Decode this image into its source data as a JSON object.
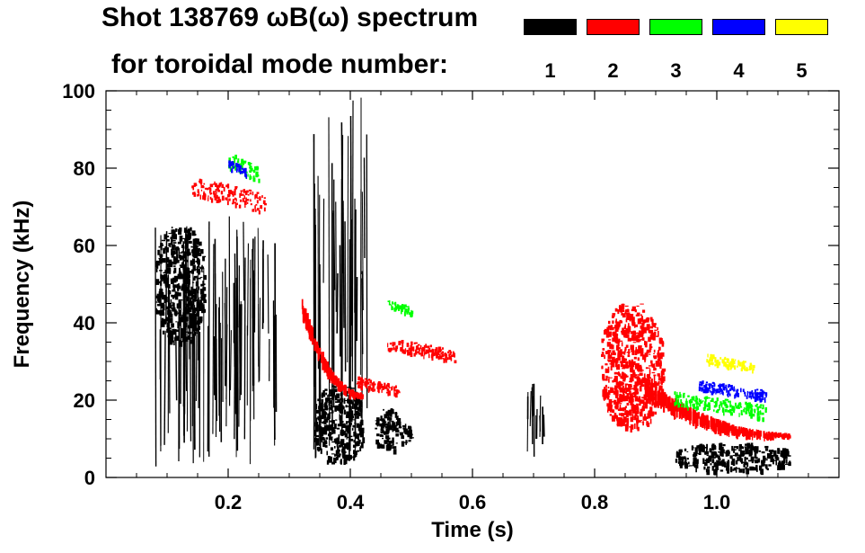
{
  "chart_data": {
    "type": "heatmap",
    "title": "Shot 138769 ωB(ω) spectrum",
    "subtitle": "for toroidal mode number:",
    "xlabel": "Time (s)",
    "ylabel": "Frequency (kHz)",
    "xlim": [
      0.0,
      1.2
    ],
    "ylim": [
      0,
      100
    ],
    "x_ticks": [
      0.2,
      0.4,
      0.6,
      0.8,
      1.0
    ],
    "x_tick_labels": [
      "0.2",
      "0.4",
      "0.6",
      "0.8",
      "1.0"
    ],
    "y_ticks": [
      0,
      20,
      40,
      60,
      80,
      100
    ],
    "y_tick_labels": [
      "0",
      "20",
      "40",
      "60",
      "80",
      "100"
    ],
    "legend": [
      {
        "label": "1",
        "color": "#000000"
      },
      {
        "label": "2",
        "color": "#ff0000"
      },
      {
        "label": "3",
        "color": "#00ff00"
      },
      {
        "label": "4",
        "color": "#0000ff"
      },
      {
        "label": "5",
        "color": "#ffff00"
      }
    ],
    "mode_regions": [
      {
        "mode": 1,
        "t": [
          0.08,
          0.28
        ],
        "f": [
          2,
          68
        ],
        "style": "streaks"
      },
      {
        "mode": 1,
        "t": [
          0.08,
          0.16
        ],
        "f": [
          35,
          65
        ],
        "style": "blob"
      },
      {
        "mode": 1,
        "t": [
          0.34,
          0.43
        ],
        "f": [
          3,
          100
        ],
        "style": "streaks"
      },
      {
        "mode": 1,
        "t": [
          0.34,
          0.42
        ],
        "f": [
          4,
          24
        ],
        "style": "blob"
      },
      {
        "mode": 1,
        "t": [
          0.44,
          0.48
        ],
        "f": [
          7,
          18
        ],
        "style": "blob"
      },
      {
        "mode": 1,
        "t": [
          0.48,
          0.5
        ],
        "f": [
          9,
          14
        ],
        "style": "blob"
      },
      {
        "mode": 1,
        "t": [
          0.69,
          0.72
        ],
        "f": [
          5,
          25
        ],
        "style": "streaks"
      },
      {
        "mode": 1,
        "t": [
          0.93,
          1.12
        ],
        "f": [
          2,
          9
        ],
        "style": "blob"
      },
      {
        "mode": 2,
        "t": [
          0.14,
          0.26
        ],
        "f": [
          68,
          78
        ],
        "style": "band"
      },
      {
        "mode": 2,
        "t": [
          0.32,
          0.42
        ],
        "f": [
          18,
          45
        ],
        "style": "chirp"
      },
      {
        "mode": 2,
        "t": [
          0.46,
          0.57
        ],
        "f": [
          30,
          36
        ],
        "style": "band"
      },
      {
        "mode": 2,
        "t": [
          0.41,
          0.48
        ],
        "f": [
          21,
          26
        ],
        "style": "band"
      },
      {
        "mode": 2,
        "t": [
          0.81,
          0.91
        ],
        "f": [
          13,
          45
        ],
        "style": "blob"
      },
      {
        "mode": 2,
        "t": [
          0.88,
          1.12
        ],
        "f": [
          9,
          24
        ],
        "style": "chirp"
      },
      {
        "mode": 3,
        "t": [
          0.2,
          0.25
        ],
        "f": [
          76,
          84
        ],
        "style": "band"
      },
      {
        "mode": 3,
        "t": [
          0.46,
          0.5
        ],
        "f": [
          42,
          46
        ],
        "style": "band"
      },
      {
        "mode": 3,
        "t": [
          0.93,
          1.08
        ],
        "f": [
          15,
          22
        ],
        "style": "band"
      },
      {
        "mode": 4,
        "t": [
          0.2,
          0.23
        ],
        "f": [
          78,
          82
        ],
        "style": "band"
      },
      {
        "mode": 4,
        "t": [
          0.97,
          1.08
        ],
        "f": [
          20,
          25
        ],
        "style": "band"
      },
      {
        "mode": 5,
        "t": [
          0.98,
          1.06
        ],
        "f": [
          27,
          32
        ],
        "style": "band"
      }
    ]
  }
}
